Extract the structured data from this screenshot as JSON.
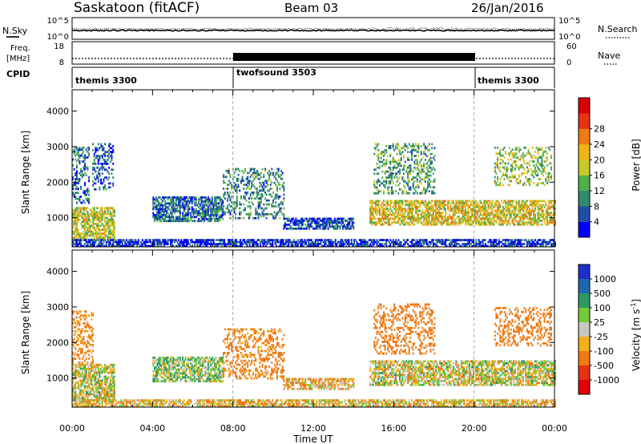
{
  "header": {
    "station": "Saskatoon (fitACF)",
    "beam": "Beam 03",
    "date": "26/Jan/2016"
  },
  "noise_panel": {
    "left_label": "N.Sky",
    "right_label": "N.Search",
    "left_ticks": [
      "10^5",
      "10^0"
    ],
    "right_ticks": [
      "10^5",
      "10^0"
    ]
  },
  "freq_panel": {
    "left_label_1": "Freq.",
    "left_label_2": "[MHz]",
    "right_label": "Nave",
    "left_ticks": [
      "18",
      "8"
    ],
    "right_ticks": [
      "60",
      "0"
    ]
  },
  "cpid": {
    "label": "CPID",
    "modes": [
      {
        "name": "themis 3300",
        "start_hour": 0
      },
      {
        "name": "twofsound 3503",
        "start_hour": 8
      },
      {
        "name": "themis 3300",
        "start_hour": 20
      }
    ]
  },
  "chart_data": [
    {
      "type": "heatmap",
      "name": "power-panel",
      "ylabel": "Slant Range [km]",
      "xlabel": "Time UT",
      "xlim_hours": [
        0,
        24
      ],
      "ylim": [
        180,
        4600
      ],
      "y_ticks": [
        "1000",
        "2000",
        "3000",
        "4000"
      ],
      "x_ticks": [
        "00:00",
        "04:00",
        "08:00",
        "12:00",
        "16:00",
        "20:00",
        "00:00"
      ],
      "colorbar": {
        "label": "Power [dB]",
        "ticks": [
          "4",
          "8",
          "12",
          "16",
          "20",
          "24",
          "28"
        ],
        "colors": [
          "#0000ff",
          "#1e4fa8",
          "#2f8a6e",
          "#4fb04a",
          "#c8c82a",
          "#f0b418",
          "#f07a14",
          "#e83214",
          "#d80000"
        ]
      },
      "regions": [
        {
          "t0": 0.0,
          "t1": 2.1,
          "r0": 400,
          "r1": 1300,
          "value": 20
        },
        {
          "t0": 0.0,
          "t1": 0.8,
          "r0": 1400,
          "r1": 3000,
          "value": 10
        },
        {
          "t0": 1.0,
          "t1": 2.0,
          "r0": 1800,
          "r1": 3100,
          "value": 8
        },
        {
          "t0": 4.0,
          "t1": 7.5,
          "r0": 900,
          "r1": 1600,
          "value": 10
        },
        {
          "t0": 7.5,
          "t1": 10.5,
          "r0": 1000,
          "r1": 2400,
          "value": 12
        },
        {
          "t0": 10.5,
          "t1": 14.0,
          "r0": 700,
          "r1": 1000,
          "value": 8
        },
        {
          "t0": 14.8,
          "t1": 24.0,
          "r0": 800,
          "r1": 1500,
          "value": 22
        },
        {
          "t0": 15.0,
          "t1": 18.0,
          "r0": 1700,
          "r1": 3100,
          "value": 14
        },
        {
          "t0": 21.0,
          "t1": 23.8,
          "r0": 1900,
          "r1": 3000,
          "value": 18
        },
        {
          "t0": 0.0,
          "t1": 24.0,
          "r0": 180,
          "r1": 400,
          "value": 6
        }
      ]
    },
    {
      "type": "heatmap",
      "name": "velocity-panel",
      "ylabel": "Slant Range [km]",
      "xlabel": "Time UT",
      "xlim_hours": [
        0,
        24
      ],
      "ylim": [
        180,
        4600
      ],
      "y_ticks": [
        "1000",
        "2000",
        "3000",
        "4000"
      ],
      "x_ticks": [
        "00:00",
        "04:00",
        "08:00",
        "12:00",
        "16:00",
        "20:00",
        "00:00"
      ],
      "colorbar": {
        "label": "Velocity [m s",
        "label_sup": "-1",
        "label_end": "]",
        "ticks": [
          "1000",
          "500",
          "100",
          "25",
          "-25",
          "-100",
          "-500",
          "-1000"
        ],
        "colors": [
          "#1e2fc8",
          "#1e68b0",
          "#2e9a62",
          "#70cc3c",
          "#c8c8c0",
          "#f4b018",
          "#f07a14",
          "#e83214",
          "#e00000"
        ]
      },
      "regions": [
        {
          "t0": 0.0,
          "t1": 2.1,
          "r0": 400,
          "r1": 1400,
          "value": 0
        },
        {
          "t0": 0.0,
          "t1": 1.0,
          "r0": 1400,
          "r1": 2900,
          "value": -150
        },
        {
          "t0": 4.0,
          "t1": 7.5,
          "r0": 900,
          "r1": 1600,
          "value": 60
        },
        {
          "t0": 7.5,
          "t1": 10.5,
          "r0": 1000,
          "r1": 2400,
          "value": -200
        },
        {
          "t0": 10.5,
          "t1": 14.0,
          "r0": 700,
          "r1": 1000,
          "value": -80
        },
        {
          "t0": 14.8,
          "t1": 24.0,
          "r0": 800,
          "r1": 1500,
          "value": 0
        },
        {
          "t0": 15.0,
          "t1": 18.0,
          "r0": 1700,
          "r1": 3100,
          "value": -300
        },
        {
          "t0": 21.0,
          "t1": 23.8,
          "r0": 1900,
          "r1": 3000,
          "value": -250
        },
        {
          "t0": 0.0,
          "t1": 24.0,
          "r0": 180,
          "r1": 400,
          "value": -60
        }
      ]
    }
  ]
}
